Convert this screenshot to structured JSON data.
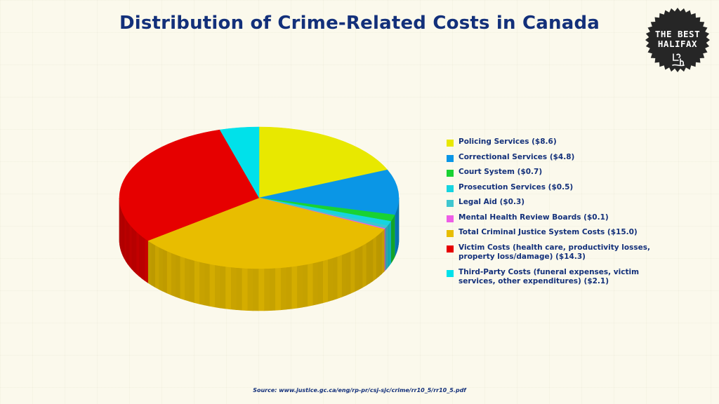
{
  "chart_data": {
    "type": "pie",
    "title": "Distribution of Crime-Related Costs in Canada",
    "slices": [
      {
        "label": "Policing Services ($8.6)",
        "value": 8.6,
        "color": "#e8e800"
      },
      {
        "label": "Correctional Services ($4.8)",
        "value": 4.8,
        "color": "#0a96e6"
      },
      {
        "label": "Court System ($0.7)",
        "value": 0.7,
        "color": "#19d233"
      },
      {
        "label": "Prosecution Services ($0.5)",
        "value": 0.5,
        "color": "#16d4e0"
      },
      {
        "label": "Legal Aid ($0.3)",
        "value": 0.3,
        "color": "#3fc6cf"
      },
      {
        "label": "Mental Health Review Boards ($0.1)",
        "value": 0.1,
        "color": "#ee5ee6"
      },
      {
        "label": "Total Criminal Justice System Costs ($15.0)",
        "value": 15.0,
        "color": "#e8bd00"
      },
      {
        "label": "Victim Costs (health care, productivity losses, property loss/damage) ($14.3)",
        "value": 14.3,
        "color": "#e60000"
      },
      {
        "label": "Third-Party Costs (funeral expenses, victim services, other expenditures) ($2.1)",
        "value": 2.1,
        "color": "#00e1ea"
      }
    ],
    "legend_position": "right",
    "style": "3d"
  },
  "source": "Source: www.justice.gc.ca/eng/rp-pr/csj-sjc/crime/rr10_5/rr10_5.pdf",
  "logo": {
    "line1": "THE BEST",
    "line2": "HALIFAX",
    "color": "#262626"
  }
}
